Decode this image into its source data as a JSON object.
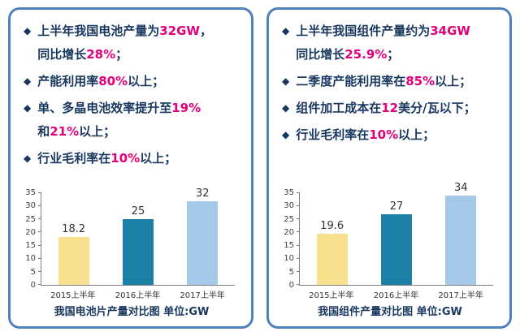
{
  "colors": {
    "panel_border": "#4f81bd",
    "bullet_text": "#17375e",
    "highlight": "#e2007a",
    "axis": "#808080",
    "tick_label": "#404040",
    "value_label": "#333333",
    "caption": "#17375e"
  },
  "icons": {
    "bullet": "◆"
  },
  "panels": [
    {
      "id": "battery",
      "bullets": [
        [
          {
            "t": "上半年我国电池产量为"
          },
          {
            "t": "32GW",
            "hl": true
          },
          {
            "t": "，"
          },
          {
            "br": true
          },
          {
            "t": "同比增长"
          },
          {
            "t": "28%",
            "hl": true
          },
          {
            "t": "；"
          }
        ],
        [
          {
            "t": "产能利用率"
          },
          {
            "t": "80%",
            "hl": true
          },
          {
            "t": "以上；"
          }
        ],
        [
          {
            "t": "单、多晶电池效率提升至"
          },
          {
            "t": "19%",
            "hl": true
          },
          {
            "br": true
          },
          {
            "t": "和"
          },
          {
            "t": "21%",
            "hl": true
          },
          {
            "t": "以上；"
          }
        ],
        [
          {
            "t": "行业毛利率在"
          },
          {
            "t": "10%",
            "hl": true
          },
          {
            "t": "以上；"
          }
        ]
      ],
      "caption": "我国电池片产量对比图 单位:GW"
    },
    {
      "id": "module",
      "bullets": [
        [
          {
            "t": "上半年我国组件产量约为"
          },
          {
            "t": "34GW",
            "hl": true
          },
          {
            "br": true
          },
          {
            "t": "同比增长"
          },
          {
            "t": "25.9%",
            "hl": true
          },
          {
            "t": "；"
          }
        ],
        [
          {
            "t": "二季度产能利用率在"
          },
          {
            "t": "85%",
            "hl": true
          },
          {
            "t": "以上；"
          }
        ],
        [
          {
            "t": "组件加工成本在"
          },
          {
            "t": "12",
            "hl": true
          },
          {
            "t": "美分/瓦以下；"
          }
        ],
        [
          {
            "t": "行业毛利率在"
          },
          {
            "t": "10%",
            "hl": true
          },
          {
            "t": "以上；"
          }
        ]
      ],
      "caption": "我国组件产量对比图 单位:GW"
    }
  ],
  "chart_data": [
    {
      "type": "bar",
      "title": "我国电池片产量对比图",
      "unit": "GW",
      "categories": [
        "2015上半年",
        "2016上半年",
        "2017上半年"
      ],
      "values": [
        18.2,
        25,
        32
      ],
      "ylim": [
        0,
        35
      ],
      "yticks": [
        0,
        5,
        10,
        15,
        20,
        25,
        30,
        35
      ],
      "bar_colors": [
        "#f8e08e",
        "#1c7fa6",
        "#a5c8e9"
      ],
      "grid": false,
      "legend": false,
      "xlabel": "",
      "ylabel": ""
    },
    {
      "type": "bar",
      "title": "我国组件产量对比图",
      "unit": "GW",
      "categories": [
        "2015上半年",
        "2016上半年",
        "2017上半年"
      ],
      "values": [
        19.6,
        27,
        34
      ],
      "ylim": [
        0,
        35
      ],
      "yticks": [
        0,
        5,
        10,
        15,
        20,
        25,
        30,
        35
      ],
      "bar_colors": [
        "#f8e08e",
        "#1c7fa6",
        "#a5c8e9"
      ],
      "grid": false,
      "legend": false,
      "xlabel": "",
      "ylabel": ""
    }
  ]
}
